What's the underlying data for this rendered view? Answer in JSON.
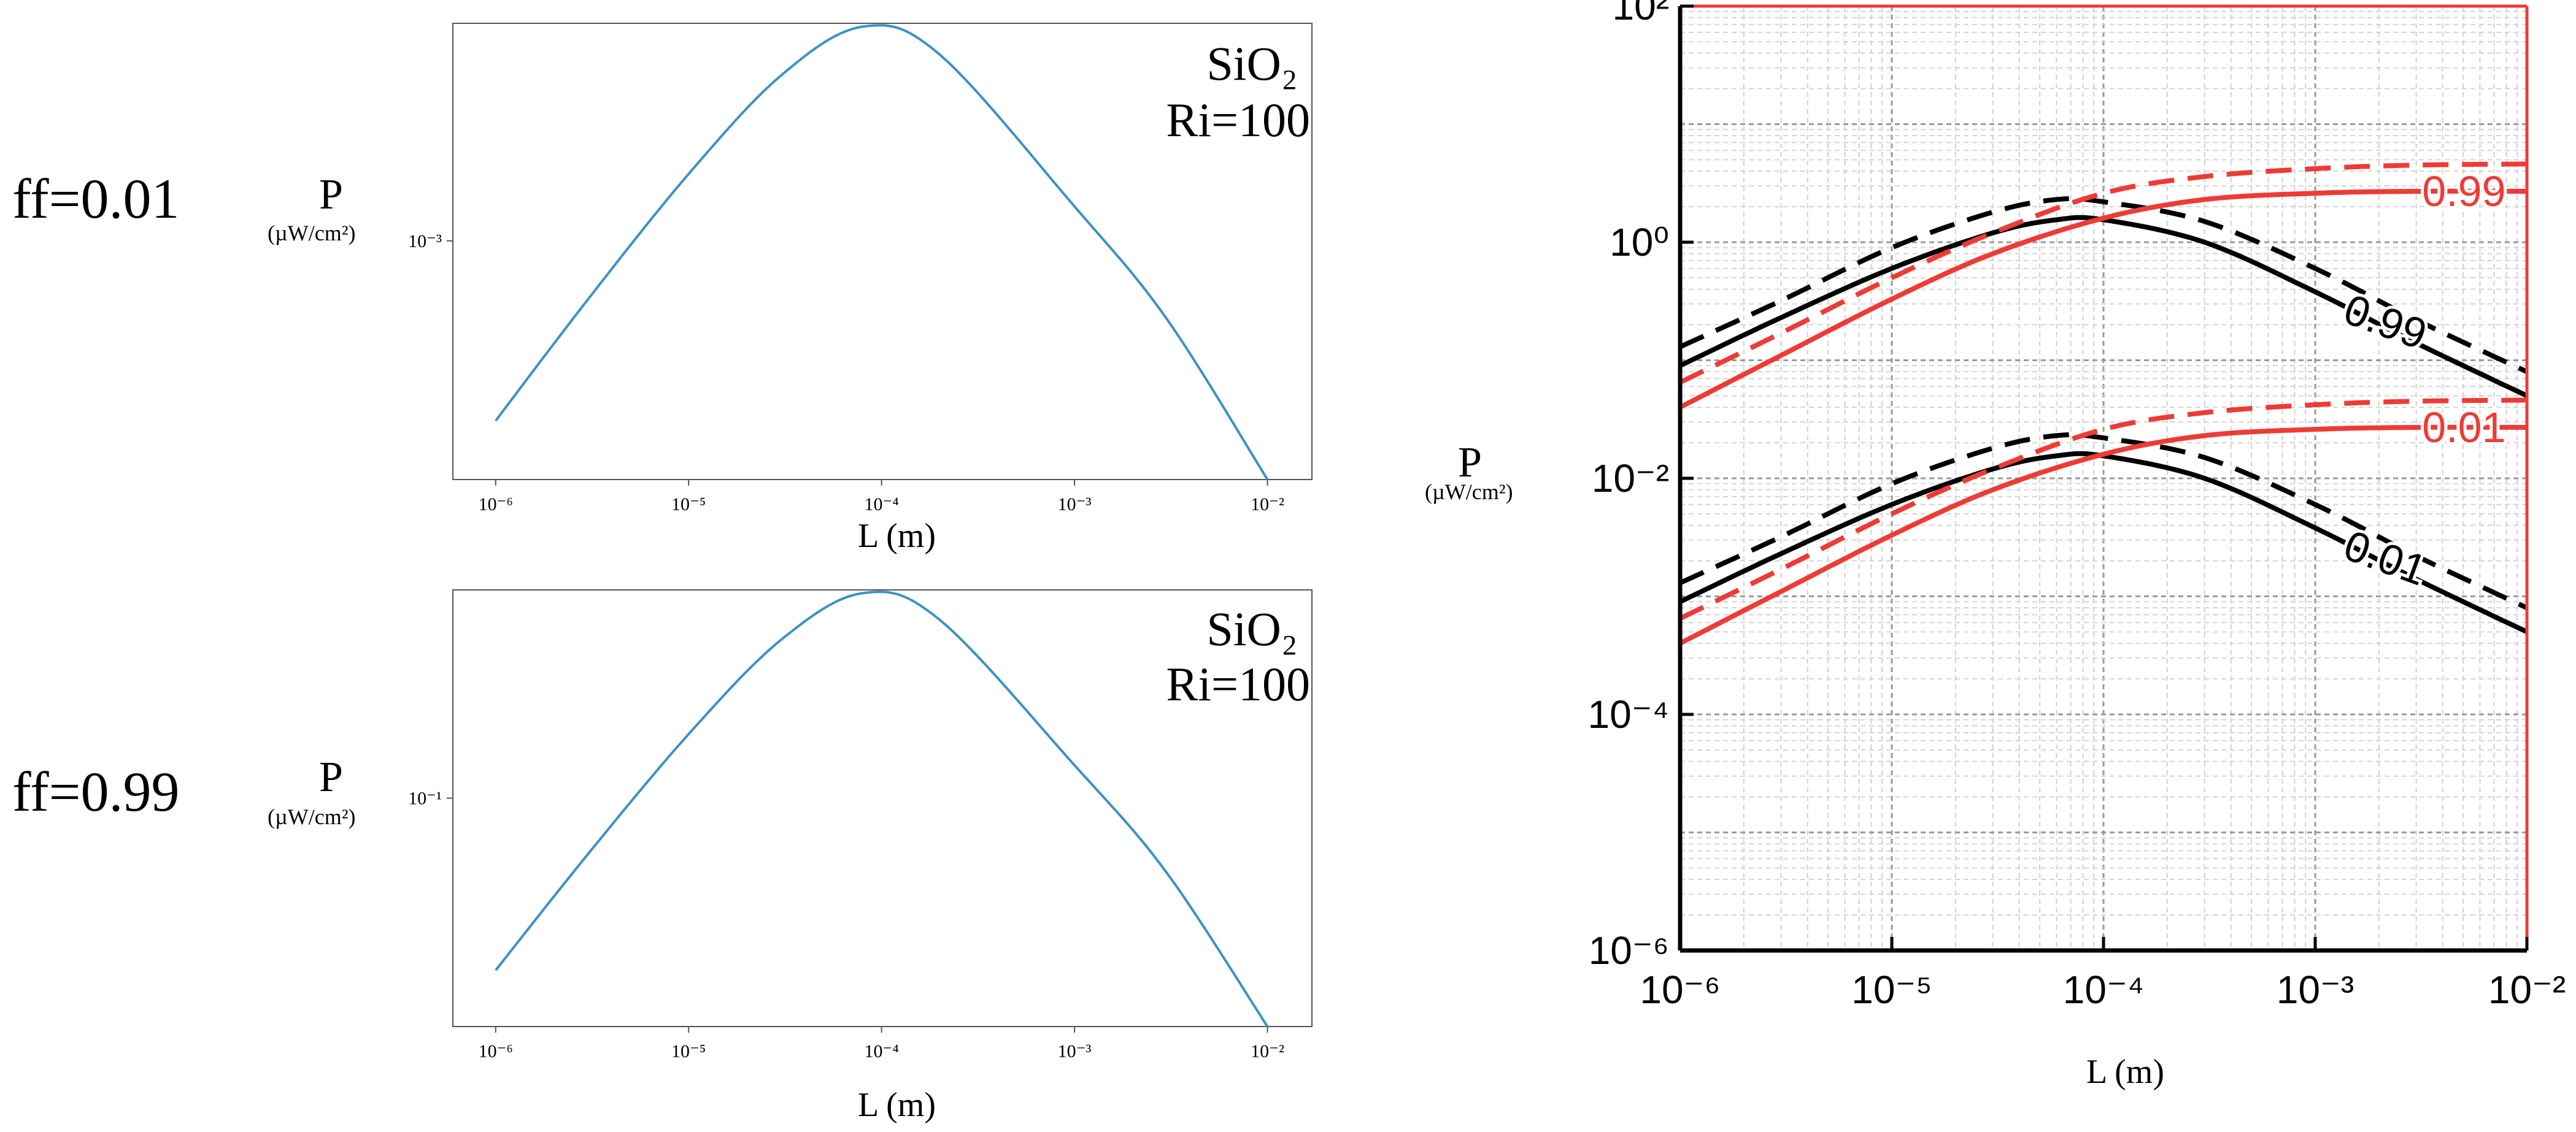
{
  "chart_data": [
    {
      "type": "line",
      "id": "top-left",
      "row_label": "ff=0.01",
      "ylabel": "P",
      "ylabel_unit": "(µW/cm²)",
      "xlabel": "L (m)",
      "annotation": [
        "SiO₂",
        "Ri=100"
      ],
      "xscale": "log",
      "yscale": "log",
      "xlim": [
        6e-07,
        0.017
      ],
      "ylim": [
        6e-05,
        0.013
      ],
      "x_ticks": [
        "10⁻⁶",
        "10⁻⁵",
        "10⁻⁴",
        "10⁻³",
        "10⁻²"
      ],
      "x_tick_values": [
        1e-06,
        1e-05,
        0.0001,
        0.001,
        0.01
      ],
      "y_ticks": [
        "10⁻³"
      ],
      "y_tick_values": [
        0.001
      ],
      "series": [
        {
          "name": "P",
          "color": "#3a93c3",
          "x": [
            1e-06,
            3e-06,
            1e-05,
            3e-05,
            8e-05,
            0.0002,
            0.001,
            0.003,
            0.01
          ],
          "y": [
            0.00012,
            0.0005,
            0.0022,
            0.007,
            0.0125,
            0.009,
            0.0015,
            0.0004,
            6e-05
          ]
        }
      ]
    },
    {
      "type": "line",
      "id": "bottom-left",
      "row_label": "ff=0.99",
      "ylabel": "P",
      "ylabel_unit": "(µW/cm²)",
      "xlabel": "L (m)",
      "annotation": [
        "SiO₂",
        "Ri=100"
      ],
      "xscale": "log",
      "yscale": "log",
      "xlim": [
        6e-07,
        0.017
      ],
      "ylim": [
        0.006,
        1.3
      ],
      "x_ticks": [
        "10⁻⁶",
        "10⁻⁵",
        "10⁻⁴",
        "10⁻³",
        "10⁻²"
      ],
      "x_tick_values": [
        1e-06,
        1e-05,
        0.0001,
        0.001,
        0.01
      ],
      "y_ticks": [
        "10⁻¹"
      ],
      "y_tick_values": [
        0.1
      ],
      "series": [
        {
          "name": "P",
          "color": "#3a93c3",
          "x": [
            1e-06,
            3e-06,
            1e-05,
            3e-05,
            8e-05,
            0.0002,
            0.001,
            0.003,
            0.01
          ],
          "y": [
            0.012,
            0.05,
            0.22,
            0.7,
            1.25,
            0.9,
            0.15,
            0.04,
            0.006
          ]
        }
      ]
    },
    {
      "type": "line",
      "id": "right",
      "ylabel": "P",
      "ylabel_unit": "(µW/cm²)",
      "xlabel": "L (m)",
      "xscale": "log",
      "yscale": "log",
      "xlim": [
        1e-06,
        0.01
      ],
      "ylim": [
        1e-06,
        100.0
      ],
      "grid": true,
      "x_ticks": [
        "10⁻⁶",
        "10⁻⁵",
        "10⁻⁴",
        "10⁻³",
        "10⁻²"
      ],
      "x_tick_values": [
        1e-06,
        1e-05,
        0.0001,
        0.001,
        0.01
      ],
      "y_ticks": [
        "10⁻⁶",
        "10⁻⁴",
        "10⁻²",
        "10⁰",
        "10²"
      ],
      "y_tick_values": [
        1e-06,
        0.0001,
        0.01,
        1,
        100.0
      ],
      "series": [
        {
          "name": "black solid 0.99",
          "color": "#000000",
          "dash": false,
          "x": [
            1e-06,
            3e-06,
            1e-05,
            3e-05,
            6e-05,
            0.0001,
            0.0003,
            0.001,
            0.003,
            0.01
          ],
          "y": [
            0.09,
            0.23,
            0.6,
            1.2,
            1.55,
            1.55,
            1.0,
            0.38,
            0.14,
            0.05
          ]
        },
        {
          "name": "black dashed 0.99",
          "color": "#000000",
          "dash": true,
          "x": [
            1e-06,
            3e-06,
            1e-05,
            3e-05,
            6e-05,
            0.0001,
            0.0003,
            0.001,
            0.003,
            0.01
          ],
          "y": [
            0.13,
            0.32,
            0.9,
            1.8,
            2.3,
            2.2,
            1.5,
            0.6,
            0.22,
            0.08
          ]
        },
        {
          "name": "red solid 0.99",
          "color": "#ee3b36",
          "dash": false,
          "x": [
            1e-06,
            3e-06,
            1e-05,
            3e-05,
            0.0001,
            0.0003,
            0.001,
            0.003,
            0.01
          ],
          "y": [
            0.04,
            0.11,
            0.33,
            0.8,
            1.6,
            2.3,
            2.6,
            2.7,
            2.7
          ]
        },
        {
          "name": "red dashed 0.99",
          "color": "#ee3b36",
          "dash": true,
          "x": [
            1e-06,
            3e-06,
            1e-05,
            3e-05,
            0.0001,
            0.0003,
            0.001,
            0.003,
            0.01
          ],
          "y": [
            0.065,
            0.17,
            0.5,
            1.2,
            2.6,
            3.6,
            4.2,
            4.5,
            4.6
          ]
        },
        {
          "name": "black solid 0.01",
          "color": "#000000",
          "dash": false,
          "x": [
            1e-06,
            3e-06,
            1e-05,
            3e-05,
            6e-05,
            0.0001,
            0.0003,
            0.001,
            0.003,
            0.01
          ],
          "y": [
            0.0009,
            0.0023,
            0.006,
            0.012,
            0.0155,
            0.0155,
            0.01,
            0.0038,
            0.0014,
            0.0005
          ]
        },
        {
          "name": "black dashed 0.01",
          "color": "#000000",
          "dash": true,
          "x": [
            1e-06,
            3e-06,
            1e-05,
            3e-05,
            6e-05,
            0.0001,
            0.0003,
            0.001,
            0.003,
            0.01
          ],
          "y": [
            0.0013,
            0.0032,
            0.009,
            0.018,
            0.023,
            0.022,
            0.015,
            0.006,
            0.0022,
            0.0008
          ]
        },
        {
          "name": "red solid 0.01",
          "color": "#ee3b36",
          "dash": false,
          "x": [
            1e-06,
            3e-06,
            1e-05,
            3e-05,
            0.0001,
            0.0003,
            0.001,
            0.003,
            0.01
          ],
          "y": [
            0.0004,
            0.0011,
            0.0033,
            0.008,
            0.016,
            0.023,
            0.026,
            0.027,
            0.027
          ]
        },
        {
          "name": "red dashed 0.01",
          "color": "#ee3b36",
          "dash": true,
          "x": [
            1e-06,
            3e-06,
            1e-05,
            3e-05,
            0.0001,
            0.0003,
            0.001,
            0.003,
            0.01
          ],
          "y": [
            0.00065,
            0.0017,
            0.005,
            0.012,
            0.026,
            0.036,
            0.042,
            0.045,
            0.046
          ]
        }
      ],
      "annotations": [
        {
          "text": "0.99",
          "color": "#ee3b36",
          "x": 0.0032,
          "y": 2.7,
          "rotate": 0
        },
        {
          "text": "0.99",
          "color": "#000000",
          "x": 0.0014,
          "y": 0.28,
          "rotate": 20
        },
        {
          "text": "0.01",
          "color": "#ee3b36",
          "x": 0.0032,
          "y": 0.027,
          "rotate": 0
        },
        {
          "text": "0.01",
          "color": "#000000",
          "x": 0.0014,
          "y": 0.0028,
          "rotate": 20
        }
      ]
    }
  ]
}
